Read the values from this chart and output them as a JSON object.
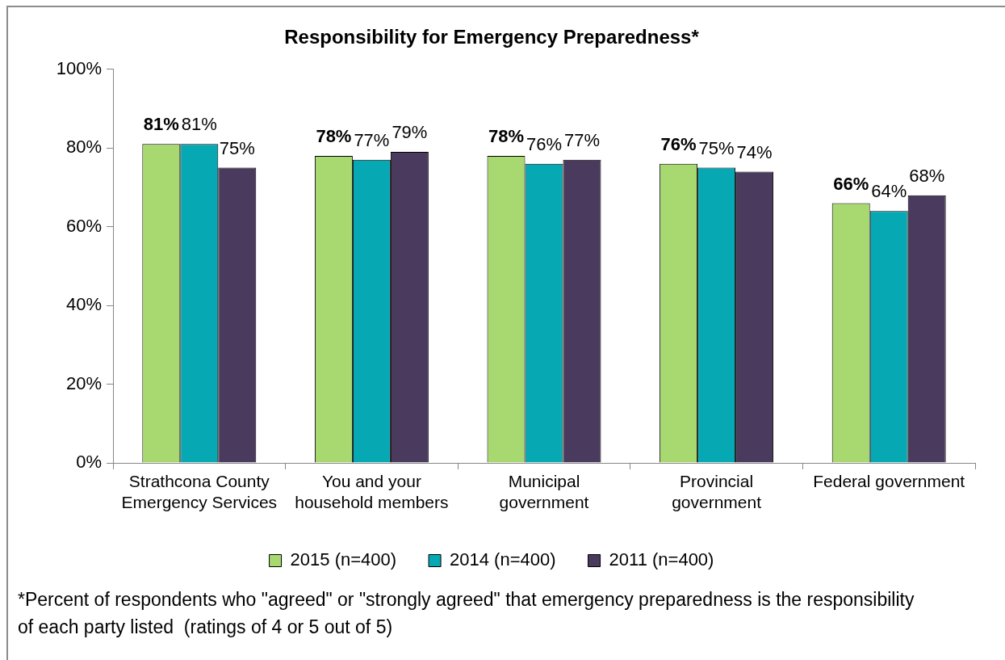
{
  "chart_data": {
    "type": "bar",
    "title": "Responsibility for Emergency Preparedness*",
    "categories": [
      "Strathcona County\nEmergency Services",
      "You and your\nhousehold members",
      "Municipal\ngovernment",
      "Provincial\ngovernment",
      "Federal government"
    ],
    "series": [
      {
        "name": "2015 (n=400)",
        "color": "#a8d870",
        "values": [
          81,
          78,
          78,
          76,
          66
        ],
        "value_labels": [
          "81%",
          "78%",
          "78%",
          "76%",
          "66%"
        ]
      },
      {
        "name": "2014 (n=400)",
        "color": "#06a9b3",
        "values": [
          81,
          77,
          76,
          75,
          64
        ],
        "value_labels": [
          "81%",
          "77%",
          "76%",
          "75%",
          "64%"
        ]
      },
      {
        "name": "2011 (n=400)",
        "color": "#4a3a5d",
        "values": [
          75,
          79,
          77,
          74,
          68
        ],
        "value_labels": [
          "75%",
          "79%",
          "77%",
          "74%",
          "68%"
        ]
      }
    ],
    "ylim": [
      0,
      100
    ],
    "yticks": [
      {
        "value": 0,
        "label": "0%"
      },
      {
        "value": 20,
        "label": "20%"
      },
      {
        "value": 40,
        "label": "40%"
      },
      {
        "value": 60,
        "label": "60%"
      },
      {
        "value": 80,
        "label": "80%"
      },
      {
        "value": 100,
        "label": "100%"
      }
    ],
    "grid": false,
    "legend": "bottom",
    "annotations": [
      "*Percent of respondents who \"agreed\" or \"strongly agreed\" that emergency preparedness is the responsibility of each party listed  (ratings of 4 or 5 out of 5)"
    ]
  }
}
